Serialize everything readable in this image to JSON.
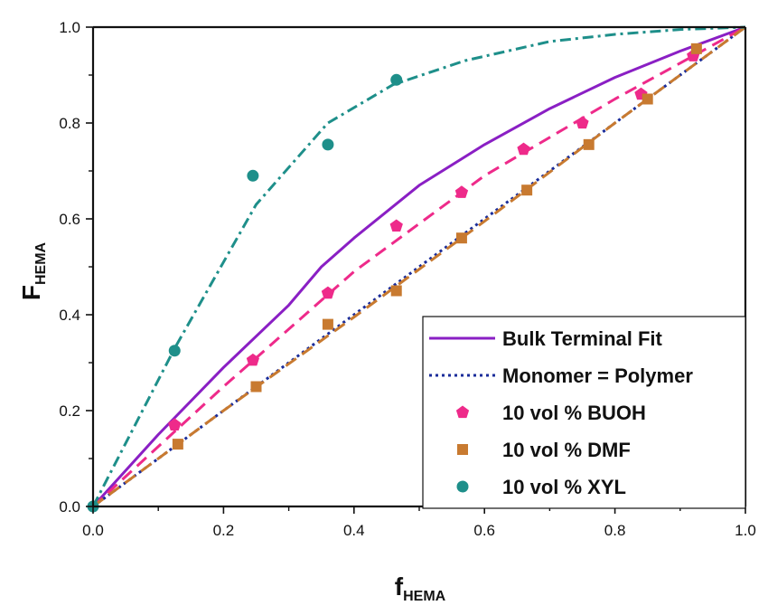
{
  "chart_data": {
    "type": "scatter",
    "title": "",
    "xlabel": {
      "main": "f",
      "sub": "HEMA"
    },
    "ylabel": {
      "main": "F",
      "sub": "HEMA"
    },
    "xlim": [
      0,
      1
    ],
    "ylim": [
      0,
      1
    ],
    "x_ticks": [
      "0.0",
      "0.2",
      "0.4",
      "0.6",
      "0.8",
      "1.0"
    ],
    "y_ticks": [
      "0.0",
      "0.2",
      "0.4",
      "0.6",
      "0.8",
      "1.0"
    ],
    "grid": false,
    "legend_position": "bottom-right",
    "series": [
      {
        "name": "Bulk Terminal Fit",
        "kind": "line",
        "style": "solid",
        "color": "#8a1fc4",
        "x": [
          0.0,
          0.1,
          0.2,
          0.3,
          0.35,
          0.4,
          0.5,
          0.6,
          0.7,
          0.8,
          0.9,
          1.0
        ],
        "y": [
          0.0,
          0.15,
          0.29,
          0.42,
          0.5,
          0.56,
          0.67,
          0.755,
          0.83,
          0.895,
          0.95,
          1.0
        ]
      },
      {
        "name": "Monomer = Polymer",
        "kind": "line",
        "style": "dotted",
        "color": "#1a2c9a",
        "x": [
          0.0,
          1.0
        ],
        "y": [
          0.0,
          1.0
        ]
      },
      {
        "name": "",
        "kind": "line",
        "style": "dashed",
        "color": "#ee2a8a",
        "x": [
          0.0,
          0.2,
          0.4,
          0.6,
          0.8,
          1.0
        ],
        "y": [
          0.0,
          0.25,
          0.49,
          0.69,
          0.85,
          1.0
        ]
      },
      {
        "name": "",
        "kind": "line",
        "style": "dashed",
        "color": "#c87a30",
        "x": [
          0.0,
          0.2,
          0.4,
          0.6,
          0.8,
          1.0
        ],
        "y": [
          0.0,
          0.2,
          0.395,
          0.595,
          0.8,
          1.0
        ]
      },
      {
        "name": "",
        "kind": "line",
        "style": "dashdot",
        "color": "#1e8f8a",
        "x": [
          0.0,
          0.125,
          0.25,
          0.36,
          0.46,
          0.57,
          0.7,
          0.8,
          0.9,
          1.0
        ],
        "y": [
          0.0,
          0.33,
          0.63,
          0.8,
          0.88,
          0.93,
          0.97,
          0.985,
          0.995,
          1.0
        ]
      },
      {
        "name": "10 vol % BUOH",
        "kind": "marker",
        "marker": "pentagon",
        "color": "#ee2a8a",
        "x": [
          0.125,
          0.245,
          0.36,
          0.465,
          0.565,
          0.66,
          0.75,
          0.84,
          0.92
        ],
        "y": [
          0.17,
          0.305,
          0.445,
          0.585,
          0.655,
          0.745,
          0.8,
          0.86,
          0.94
        ]
      },
      {
        "name": "10 vol % DMF",
        "kind": "marker",
        "marker": "square",
        "color": "#c87a30",
        "x": [
          0.13,
          0.25,
          0.36,
          0.465,
          0.565,
          0.665,
          0.76,
          0.85,
          0.925
        ],
        "y": [
          0.13,
          0.25,
          0.38,
          0.45,
          0.56,
          0.66,
          0.755,
          0.85,
          0.955
        ]
      },
      {
        "name": "10 vol % XYL",
        "kind": "marker",
        "marker": "circle",
        "color": "#1e8f8a",
        "x": [
          0.0,
          0.125,
          0.245,
          0.36,
          0.465
        ],
        "y": [
          0.0,
          0.325,
          0.69,
          0.755,
          0.89
        ]
      }
    ]
  }
}
